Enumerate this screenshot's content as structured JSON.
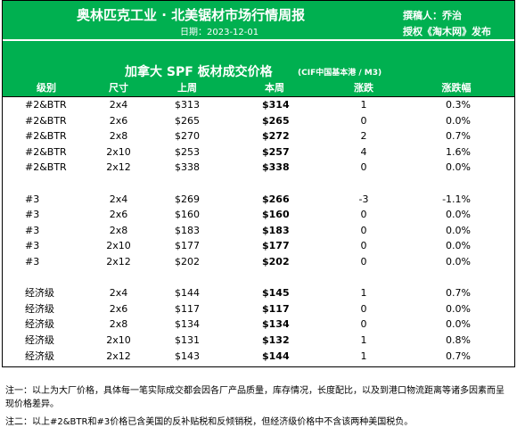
{
  "header": {
    "title": "奥林匹克工业 · 北美锯材市场行情周报",
    "date": "日期：2023-12-01",
    "author": "撰稿人：乔治",
    "license": "授权《淘木网》发布"
  },
  "table": {
    "title": "加拿大 SPF 板材成交价格",
    "subtitle": "(CIF中国基本港 / M3)",
    "columns": [
      "级别",
      "尺寸",
      "上周",
      "本周",
      "涨跌",
      "涨跌幅"
    ],
    "groups": [
      [
        [
          "#2&BTR",
          "2x4",
          "$313",
          "$314",
          "1",
          "0.3%"
        ],
        [
          "#2&BTR",
          "2x6",
          "$265",
          "$265",
          "0",
          "0.0%"
        ],
        [
          "#2&BTR",
          "2x8",
          "$270",
          "$272",
          "2",
          "0.7%"
        ],
        [
          "#2&BTR",
          "2x10",
          "$253",
          "$257",
          "4",
          "1.6%"
        ],
        [
          "#2&BTR",
          "2x12",
          "$338",
          "$338",
          "0",
          "0.0%"
        ]
      ],
      [
        [
          "#3",
          "2x4",
          "$269",
          "$266",
          "-3",
          "-1.1%"
        ],
        [
          "#3",
          "2x6",
          "$160",
          "$160",
          "0",
          "0.0%"
        ],
        [
          "#3",
          "2x8",
          "$183",
          "$183",
          "0",
          "0.0%"
        ],
        [
          "#3",
          "2x10",
          "$177",
          "$177",
          "0",
          "0.0%"
        ],
        [
          "#3",
          "2x12",
          "$202",
          "$202",
          "0",
          "0.0%"
        ]
      ],
      [
        [
          "经济级",
          "2x4",
          "$144",
          "$145",
          "1",
          "0.7%"
        ],
        [
          "经济级",
          "2x6",
          "$117",
          "$117",
          "0",
          "0.0%"
        ],
        [
          "经济级",
          "2x8",
          "$134",
          "$134",
          "0",
          "0.0%"
        ],
        [
          "经济级",
          "2x10",
          "$131",
          "$132",
          "1",
          "0.8%"
        ],
        [
          "经济级",
          "2x12",
          "$143",
          "$144",
          "1",
          "0.7%"
        ]
      ]
    ]
  },
  "notes": [
    "注一：以上为大厂价格，具体每一笔实际成交都会因各厂产品质量，库存情况，长度配比，以及到港口物流距离等诸多因素而呈现价格差异。",
    "注二：以上#2&BTR和#3价格已含美国的反补贴税和反倾销税，但经济级价格中不含该两种美国税负。"
  ]
}
